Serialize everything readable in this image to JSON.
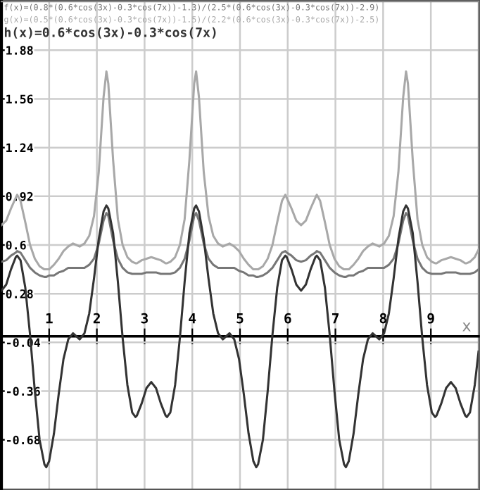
{
  "chart_data": {
    "type": "line",
    "x": [
      0,
      0.1,
      0.2,
      0.3,
      0.33,
      0.4,
      0.5,
      0.6,
      0.7,
      0.8,
      0.9,
      0.94,
      1.0,
      1.1,
      1.2,
      1.3,
      1.4,
      1.5,
      1.57,
      1.64,
      1.74,
      1.84,
      1.94,
      2.04,
      2.14,
      2.2,
      2.24,
      2.34,
      2.44,
      2.54,
      2.64,
      2.74,
      2.81,
      2.84,
      2.94,
      3.04,
      3.14,
      3.24,
      3.34,
      3.44,
      3.47,
      3.54,
      3.64,
      3.74,
      3.84,
      3.94,
      4.04,
      4.08,
      4.14,
      4.24,
      4.34,
      4.44,
      4.54,
      4.64,
      4.71,
      4.78,
      4.88,
      4.98,
      5.08,
      5.18,
      5.28,
      5.34,
      5.38,
      5.48,
      5.58,
      5.68,
      5.78,
      5.88,
      5.95,
      5.98,
      6.08,
      6.18,
      6.28,
      6.38,
      6.48,
      6.58,
      6.61,
      6.68,
      6.78,
      6.88,
      6.98,
      7.08,
      7.18,
      7.22,
      7.28,
      7.38,
      7.48,
      7.58,
      7.68,
      7.78,
      7.85,
      7.92,
      8.02,
      8.12,
      8.22,
      8.32,
      8.42,
      8.48,
      8.52,
      8.62,
      8.72,
      8.82,
      8.92,
      9.02,
      9.09,
      9.12,
      9.22,
      9.32,
      9.42,
      9.52,
      9.62,
      9.72,
      9.75,
      9.82,
      9.92,
      10.0
    ],
    "series": [
      {
        "name": "f(x)=(0.8*(0.6*cos(3x)-0.3*cos(7x))-1.3)/(2.5*(0.6*cos(3x)-0.3*cos(7x))-2.9)",
        "color": "#777777",
        "values": [
          0.49,
          0.5,
          0.53,
          0.55,
          0.56,
          0.55,
          0.5,
          0.45,
          0.42,
          0.4,
          0.39,
          0.39,
          0.4,
          0.4,
          0.42,
          0.43,
          0.45,
          0.45,
          0.45,
          0.45,
          0.45,
          0.47,
          0.51,
          0.61,
          0.76,
          0.81,
          0.79,
          0.63,
          0.51,
          0.45,
          0.42,
          0.41,
          0.41,
          0.41,
          0.41,
          0.42,
          0.42,
          0.42,
          0.41,
          0.41,
          0.41,
          0.41,
          0.42,
          0.45,
          0.51,
          0.63,
          0.79,
          0.81,
          0.76,
          0.61,
          0.51,
          0.47,
          0.45,
          0.45,
          0.45,
          0.45,
          0.45,
          0.43,
          0.42,
          0.4,
          0.4,
          0.39,
          0.39,
          0.4,
          0.42,
          0.45,
          0.5,
          0.55,
          0.56,
          0.55,
          0.53,
          0.5,
          0.49,
          0.5,
          0.53,
          0.55,
          0.56,
          0.55,
          0.5,
          0.45,
          0.42,
          0.4,
          0.39,
          0.39,
          0.4,
          0.4,
          0.42,
          0.43,
          0.45,
          0.45,
          0.45,
          0.45,
          0.45,
          0.47,
          0.51,
          0.61,
          0.76,
          0.81,
          0.79,
          0.63,
          0.51,
          0.45,
          0.42,
          0.41,
          0.41,
          0.41,
          0.41,
          0.42,
          0.42,
          0.42,
          0.41,
          0.41,
          0.41,
          0.41,
          0.42,
          0.44
        ]
      },
      {
        "name": "g(x)=(0.5*(0.6*cos(3x)-0.3*cos(7x))-1.5)/(2.2*(0.6*cos(3x)-0.3*cos(7x))-2.5)",
        "color": "#a8a8a8",
        "values": [
          0.73,
          0.76,
          0.84,
          0.91,
          0.93,
          0.89,
          0.75,
          0.6,
          0.51,
          0.46,
          0.44,
          0.44,
          0.44,
          0.47,
          0.51,
          0.56,
          0.59,
          0.61,
          0.6,
          0.59,
          0.61,
          0.66,
          0.79,
          1.08,
          1.57,
          1.74,
          1.66,
          1.16,
          0.77,
          0.6,
          0.52,
          0.49,
          0.48,
          0.48,
          0.5,
          0.51,
          0.52,
          0.51,
          0.5,
          0.48,
          0.48,
          0.49,
          0.52,
          0.6,
          0.77,
          1.16,
          1.66,
          1.74,
          1.57,
          1.08,
          0.79,
          0.66,
          0.61,
          0.59,
          0.6,
          0.61,
          0.59,
          0.56,
          0.51,
          0.47,
          0.44,
          0.44,
          0.44,
          0.46,
          0.51,
          0.6,
          0.75,
          0.89,
          0.93,
          0.91,
          0.84,
          0.76,
          0.73,
          0.76,
          0.84,
          0.91,
          0.93,
          0.89,
          0.75,
          0.6,
          0.51,
          0.46,
          0.44,
          0.44,
          0.44,
          0.47,
          0.51,
          0.56,
          0.59,
          0.61,
          0.6,
          0.59,
          0.61,
          0.66,
          0.79,
          1.08,
          1.57,
          1.74,
          1.66,
          1.16,
          0.77,
          0.6,
          0.52,
          0.49,
          0.48,
          0.48,
          0.5,
          0.51,
          0.52,
          0.51,
          0.5,
          0.48,
          0.48,
          0.49,
          0.52,
          0.57
        ]
      },
      {
        "name": "h(x)=0.6*cos(3x)-0.3*cos(7x)",
        "color": "#333333",
        "values": [
          0.3,
          0.34,
          0.44,
          0.52,
          0.53,
          0.5,
          0.32,
          0.01,
          -0.36,
          -0.68,
          -0.84,
          -0.86,
          -0.82,
          -0.64,
          -0.38,
          -0.15,
          -0.02,
          0.02,
          0.0,
          -0.02,
          0.02,
          0.15,
          0.38,
          0.64,
          0.82,
          0.86,
          0.84,
          0.68,
          0.36,
          -0.01,
          -0.32,
          -0.5,
          -0.53,
          -0.52,
          -0.44,
          -0.34,
          -0.3,
          -0.34,
          -0.44,
          -0.52,
          -0.53,
          -0.5,
          -0.32,
          -0.01,
          0.36,
          0.68,
          0.84,
          0.86,
          0.82,
          0.64,
          0.38,
          0.15,
          0.02,
          -0.02,
          0.0,
          0.02,
          -0.02,
          -0.15,
          -0.38,
          -0.64,
          -0.82,
          -0.86,
          -0.84,
          -0.68,
          -0.36,
          0.01,
          0.32,
          0.5,
          0.53,
          0.52,
          0.44,
          0.34,
          0.3,
          0.34,
          0.44,
          0.52,
          0.53,
          0.5,
          0.32,
          0.01,
          -0.36,
          -0.68,
          -0.84,
          -0.86,
          -0.82,
          -0.64,
          -0.38,
          -0.15,
          -0.02,
          0.02,
          0.0,
          -0.02,
          0.02,
          0.15,
          0.38,
          0.64,
          0.82,
          0.86,
          0.84,
          0.68,
          0.36,
          -0.01,
          -0.32,
          -0.5,
          -0.53,
          -0.52,
          -0.44,
          -0.34,
          -0.3,
          -0.34,
          -0.44,
          -0.52,
          -0.53,
          -0.5,
          -0.32,
          -0.1
        ]
      }
    ],
    "xlabel": "x",
    "xlim": [
      0,
      10
    ],
    "xticks": [
      1,
      2,
      3,
      4,
      5,
      6,
      7,
      8,
      9
    ],
    "ylim": [
      -1.0,
      2.2
    ],
    "yticks": [
      -0.68,
      -0.36,
      -0.04,
      0.28,
      0.6,
      0.92,
      1.24,
      1.56,
      1.88
    ],
    "grid": true,
    "legend": "top left",
    "marker": "none",
    "line_style": "solid"
  }
}
